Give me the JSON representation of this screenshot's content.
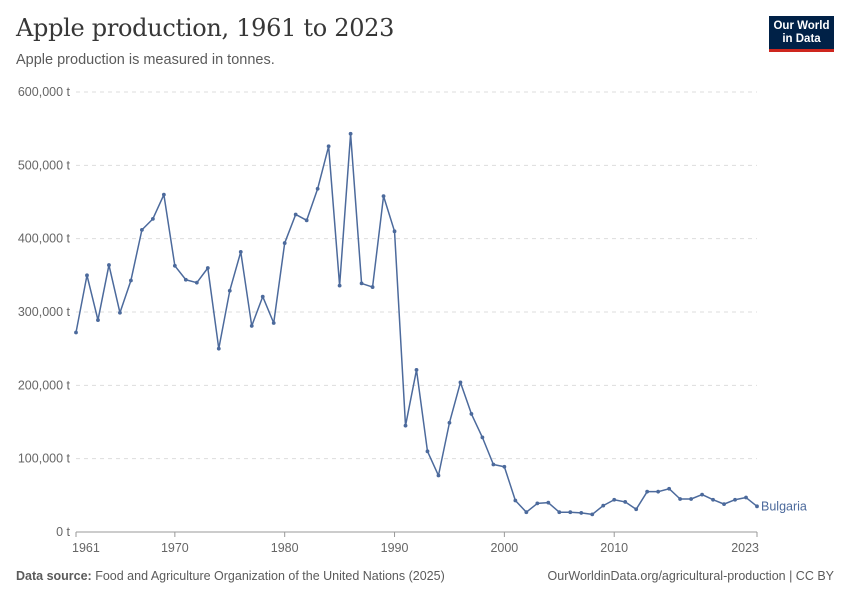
{
  "header": {
    "title": "Apple production, 1961 to 2023",
    "subtitle": "Apple production is measured in tonnes.",
    "logo_line1": "Our World",
    "logo_line2": "in Data"
  },
  "footer": {
    "source_label": "Data source:",
    "source_text": "Food and Agriculture Organization of the United Nations (2025)",
    "right_text": "OurWorldinData.org/agricultural-production | CC BY"
  },
  "colors": {
    "series": "#4c6a9c",
    "grid": "#dddddd",
    "text": "#666666"
  },
  "chart_data": {
    "type": "line",
    "title": "Apple production, 1961 to 2023",
    "xlabel": "",
    "ylabel": "",
    "xlim": [
      1961,
      2023
    ],
    "ylim": [
      0,
      600000
    ],
    "y_ticks": [
      0,
      100000,
      200000,
      300000,
      400000,
      500000,
      600000
    ],
    "y_tick_labels": [
      "0 t",
      "100,000 t",
      "200,000 t",
      "300,000 t",
      "400,000 t",
      "500,000 t",
      "600,000 t"
    ],
    "x_ticks": [
      1961,
      1970,
      1980,
      1990,
      2000,
      2010,
      2023
    ],
    "x_tick_labels": [
      "1961",
      "1970",
      "1980",
      "1990",
      "2000",
      "2010",
      "2023"
    ],
    "grid": true,
    "series": [
      {
        "name": "Bulgaria",
        "x": [
          1961,
          1962,
          1963,
          1964,
          1965,
          1966,
          1967,
          1968,
          1969,
          1970,
          1971,
          1972,
          1973,
          1974,
          1975,
          1976,
          1977,
          1978,
          1979,
          1980,
          1981,
          1982,
          1983,
          1984,
          1985,
          1986,
          1987,
          1988,
          1989,
          1990,
          1991,
          1992,
          1993,
          1994,
          1995,
          1996,
          1997,
          1998,
          1999,
          2000,
          2001,
          2002,
          2003,
          2004,
          2005,
          2006,
          2007,
          2008,
          2009,
          2010,
          2011,
          2012,
          2013,
          2014,
          2015,
          2016,
          2017,
          2018,
          2019,
          2020,
          2021,
          2022,
          2023
        ],
        "values": [
          272000,
          350000,
          289000,
          364000,
          299000,
          343000,
          412000,
          427000,
          460000,
          363000,
          344000,
          340000,
          360000,
          250000,
          329000,
          382000,
          281000,
          321000,
          285000,
          394000,
          433000,
          425000,
          468000,
          526000,
          336000,
          543000,
          339000,
          334000,
          458000,
          410000,
          145000,
          221000,
          110000,
          77000,
          149000,
          204000,
          161000,
          129000,
          92000,
          89000,
          43000,
          27000,
          39000,
          40000,
          27000,
          27000,
          26000,
          24000,
          36000,
          44000,
          41000,
          31000,
          55000,
          55000,
          59000,
          45000,
          45000,
          51000,
          44000,
          38000,
          44000,
          47000,
          35000
        ]
      }
    ]
  }
}
